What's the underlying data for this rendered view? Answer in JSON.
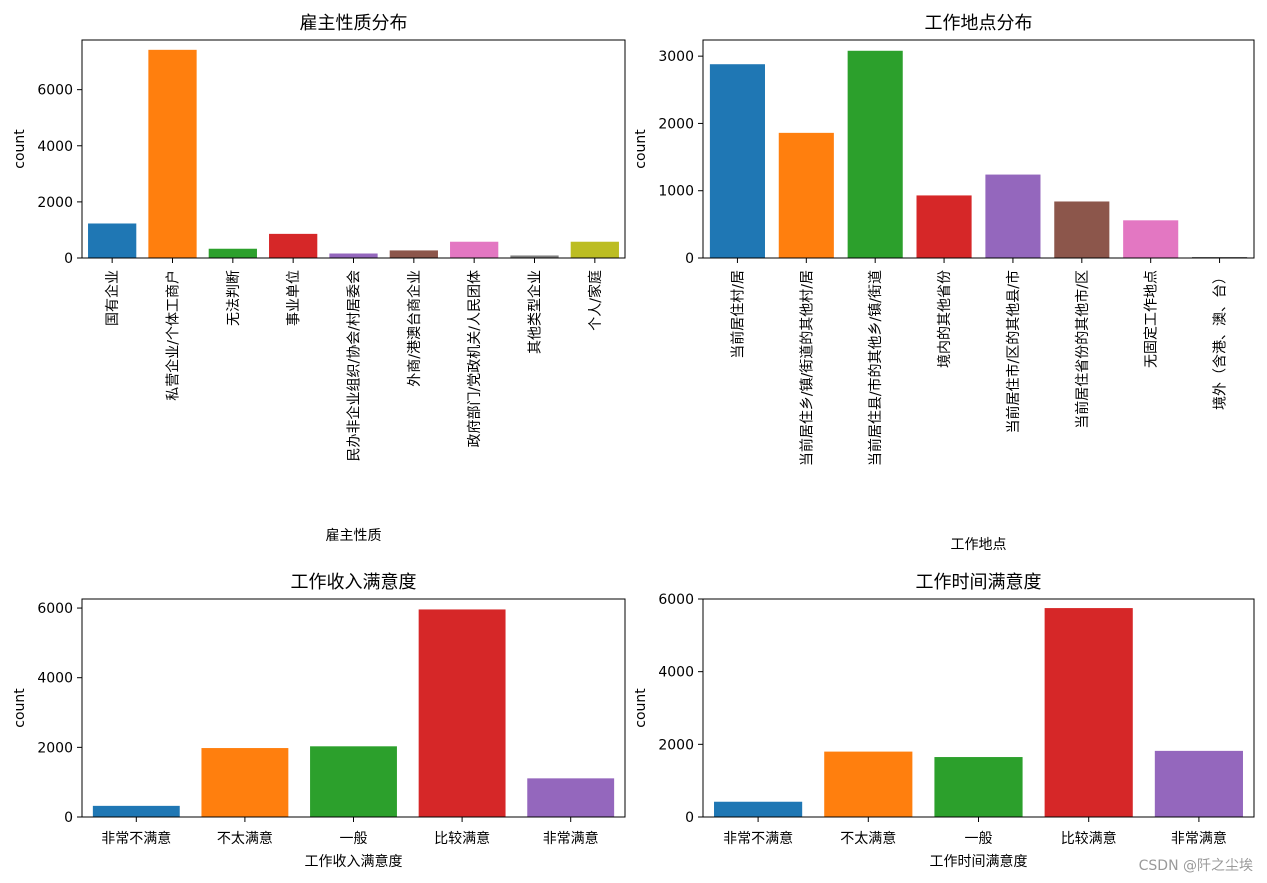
{
  "chart_data": [
    {
      "type": "bar",
      "title": "雇主性质分布",
      "xlabel": "雇主性质",
      "ylabel": "count",
      "ylim": [
        0,
        7770
      ],
      "yticks": [
        0,
        2000,
        4000,
        6000
      ],
      "categories": [
        "国有企业",
        "私营企业/个体工商户",
        "无法判断",
        "事业单位",
        "民办非企业组织/协会/村居委会",
        "外商/港澳台商企业",
        "政府部门/党政机关/人民团体",
        "其他类型企业",
        "个人/家庭"
      ],
      "values": [
        1230,
        7420,
        330,
        860,
        160,
        270,
        580,
        90,
        580
      ],
      "colors": [
        "#1f77b4",
        "#ff7f0e",
        "#2ca02c",
        "#d62728",
        "#9467bd",
        "#8c564b",
        "#e377c2",
        "#7f7f7f",
        "#bcbd22"
      ]
    },
    {
      "type": "bar",
      "title": "工作地点分布",
      "xlabel": "工作地点",
      "ylabel": "count",
      "ylim": [
        0,
        3240
      ],
      "yticks": [
        0,
        1000,
        2000,
        3000
      ],
      "categories": [
        "当前居住村/居",
        "当前居住乡/镇/街道的其他村/居",
        "当前居住县/市的其他乡/镇/街道",
        "境内的其他省份",
        "当前居住市/区的其他县/市",
        "当前居住省份的其他市/区",
        "无固定工作地点",
        "境外（含港、澳、台）"
      ],
      "values": [
        2880,
        1860,
        3080,
        930,
        1240,
        840,
        560,
        15
      ],
      "colors": [
        "#1f77b4",
        "#ff7f0e",
        "#2ca02c",
        "#d62728",
        "#9467bd",
        "#8c564b",
        "#e377c2",
        "#7f7f7f"
      ]
    },
    {
      "type": "bar",
      "title": "工作收入满意度",
      "xlabel": "工作收入满意度",
      "ylabel": "count",
      "ylim": [
        0,
        6260
      ],
      "yticks": [
        0,
        2000,
        4000,
        6000
      ],
      "categories": [
        "非常不满意",
        "不太满意",
        "一般",
        "比较满意",
        "非常满意"
      ],
      "values": [
        320,
        1980,
        2030,
        5960,
        1110
      ],
      "colors": [
        "#1f77b4",
        "#ff7f0e",
        "#2ca02c",
        "#d62728",
        "#9467bd"
      ]
    },
    {
      "type": "bar",
      "title": "工作时间满意度",
      "xlabel": "工作时间满意度",
      "ylabel": "count",
      "ylim": [
        0,
        6000
      ],
      "yticks": [
        0,
        2000,
        4000,
        6000
      ],
      "categories": [
        "非常不满意",
        "不太满意",
        "一般",
        "比较满意",
        "非常满意"
      ],
      "values": [
        420,
        1800,
        1650,
        5750,
        1820
      ],
      "colors": [
        "#1f77b4",
        "#ff7f0e",
        "#2ca02c",
        "#d62728",
        "#9467bd"
      ]
    }
  ],
  "watermark": "CSDN @阡之尘埃"
}
